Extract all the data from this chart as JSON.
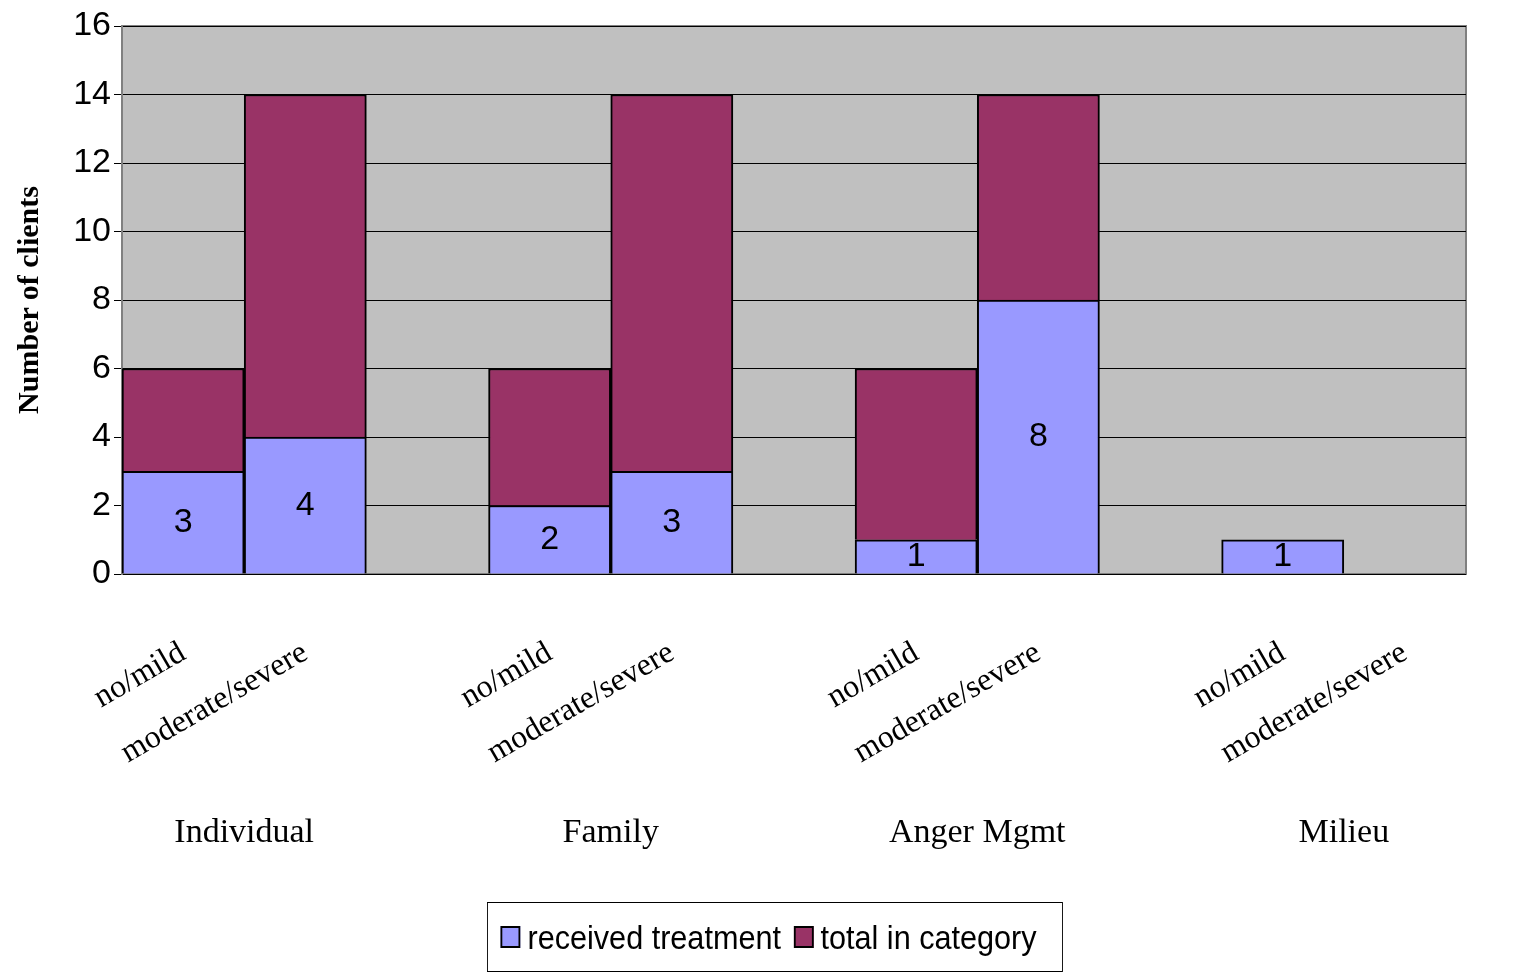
{
  "chart_data": {
    "type": "bar",
    "ylabel": "Number of clients",
    "stacked": true,
    "categories": [
      "no/mild",
      "moderate/severe",
      null,
      "no/mild",
      "moderate/severe",
      null,
      "no/mild",
      "moderate/severe",
      null,
      "no/mild",
      "moderate/severe"
    ],
    "series": [
      {
        "name": "received treatment",
        "color": "#9999ff",
        "values": [
          3,
          4,
          null,
          2,
          3,
          null,
          1,
          8,
          null,
          1,
          null
        ],
        "value_labels": [
          "3",
          "4",
          null,
          "2",
          "3",
          null,
          "1",
          "8",
          null,
          "1",
          null
        ]
      },
      {
        "name": "total in category",
        "color": "#993366",
        "values": [
          3,
          10,
          null,
          4,
          11,
          null,
          5,
          6,
          null,
          0,
          null
        ]
      }
    ],
    "annotations": [
      "Individual",
      "Family",
      "Anger Mgmt",
      "Milieu"
    ],
    "ylim": [
      0,
      16
    ],
    "yticks": [
      0,
      2,
      4,
      6,
      8,
      10,
      12,
      14,
      16
    ],
    "grid": "y",
    "legend": "bottom"
  }
}
